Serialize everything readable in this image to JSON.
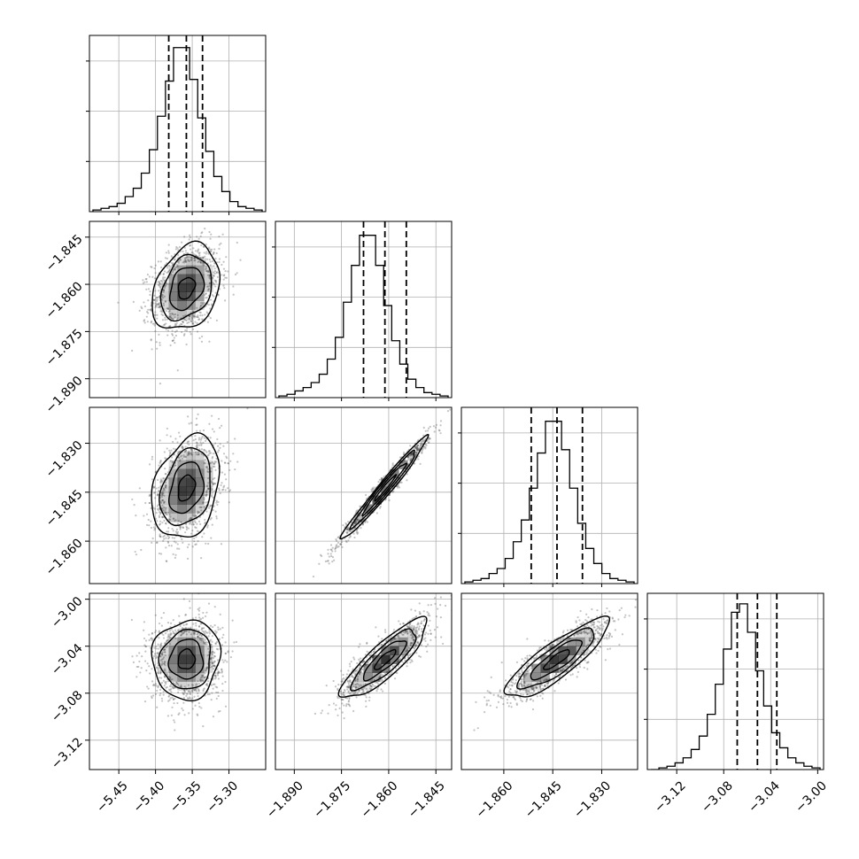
{
  "chart_data": {
    "type": "corner",
    "grid": true,
    "parameters": [
      {
        "index": 0,
        "range": [
          -5.49,
          -5.25
        ],
        "ticks": [
          -5.45,
          -5.4,
          -5.35,
          -5.3
        ],
        "tick_labels": [
          "−5.45",
          "−5.40",
          "−5.35",
          "−5.30"
        ],
        "quantiles": [
          -5.382,
          -5.358,
          -5.336
        ],
        "hist": [
          1,
          2,
          3,
          5,
          9,
          14,
          23,
          37,
          57,
          78,
          98,
          98,
          79,
          56,
          36,
          21,
          12,
          6,
          3,
          2,
          1
        ]
      },
      {
        "index": 1,
        "range": [
          -1.896,
          -1.84
        ],
        "ticks": [
          -1.89,
          -1.875,
          -1.86,
          -1.845
        ],
        "tick_labels": [
          "−1.890",
          "−1.875",
          "−1.860",
          "−1.845"
        ],
        "quantiles": [
          -1.868,
          -1.8612,
          -1.8544
        ],
        "hist": [
          1,
          2,
          4,
          6,
          9,
          14,
          23,
          36,
          57,
          79,
          97,
          97,
          79,
          55,
          34,
          20,
          11,
          6,
          3,
          2,
          1
        ]
      },
      {
        "index": 2,
        "range": [
          -1.873,
          -1.819
        ],
        "ticks": [
          -1.86,
          -1.845,
          -1.83
        ],
        "tick_labels": [
          "−1.860",
          "−1.845",
          "−1.830"
        ],
        "quantiles": [
          -1.8516,
          -1.8437,
          -1.8359
        ],
        "hist": [
          1,
          2,
          3,
          6,
          9,
          15,
          25,
          38,
          57,
          78,
          97,
          97,
          80,
          57,
          36,
          21,
          12,
          6,
          3,
          2,
          1
        ]
      },
      {
        "index": 3,
        "range": [
          -3.145,
          -2.995
        ],
        "ticks": [
          -3.12,
          -3.08,
          -3.04,
          -3.0
        ],
        "tick_labels": [
          "−3.12",
          "−3.08",
          "−3.04",
          "−3.00"
        ],
        "quantiles": [
          -3.0685,
          -3.0513,
          -3.0348
        ],
        "hist": [
          0,
          1,
          2,
          4,
          7,
          12,
          20,
          33,
          51,
          72,
          94,
          99,
          82,
          59,
          38,
          22,
          13,
          7,
          4,
          2,
          1
        ]
      }
    ],
    "correlations": [
      {
        "i": 1,
        "j": 0,
        "rho": 0.28
      },
      {
        "i": 2,
        "j": 0,
        "rho": 0.28
      },
      {
        "i": 2,
        "j": 1,
        "rho": 0.98
      },
      {
        "i": 3,
        "j": 0,
        "rho": 0.05
      },
      {
        "i": 3,
        "j": 1,
        "rho": 0.85
      },
      {
        "i": 3,
        "j": 2,
        "rho": 0.85
      }
    ],
    "contour_levels_sigma": [
      0.5,
      1.0,
      1.5,
      2.0
    ],
    "colors": {
      "line": "#000000",
      "grid": "#b0b0b0",
      "points": "#555555",
      "density": "#000000"
    }
  }
}
